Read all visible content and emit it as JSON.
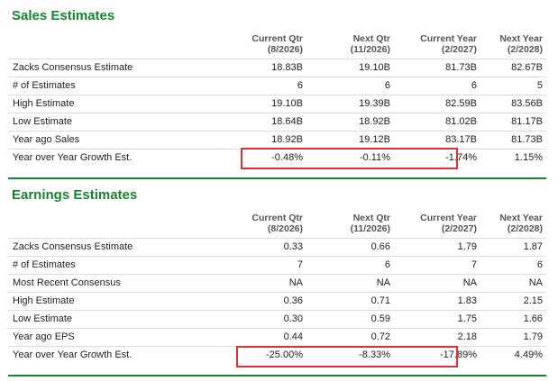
{
  "sales": {
    "title": "Sales Estimates",
    "headers": [
      {
        "l1": "Current Qtr",
        "l2": "(8/2026)"
      },
      {
        "l1": "Next Qtr",
        "l2": "(11/2026)"
      },
      {
        "l1": "Current Year",
        "l2": "(2/2027)"
      },
      {
        "l1": "Next Year",
        "l2": "(2/2028)"
      }
    ],
    "rows": [
      {
        "label": "Zacks Consensus Estimate",
        "values": [
          "18.83B",
          "19.10B",
          "81.73B",
          "82.67B"
        ]
      },
      {
        "label": "# of Estimates",
        "values": [
          "6",
          "6",
          "6",
          "5"
        ]
      },
      {
        "label": "High Estimate",
        "values": [
          "19.10B",
          "19.39B",
          "82.59B",
          "83.56B"
        ]
      },
      {
        "label": "Low Estimate",
        "values": [
          "18.64B",
          "18.92B",
          "81.02B",
          "81.17B"
        ]
      },
      {
        "label": "Year ago Sales",
        "values": [
          "18.92B",
          "19.12B",
          "83.17B",
          "81.73B"
        ]
      },
      {
        "label": "Year over Year Growth Est.",
        "values": [
          "-0.48%",
          "-0.11%",
          "-1.74%",
          "1.15%"
        ]
      }
    ]
  },
  "earnings": {
    "title": "Earnings Estimates",
    "headers": [
      {
        "l1": "Current Qtr",
        "l2": "(8/2026)"
      },
      {
        "l1": "Next Qtr",
        "l2": "(11/2026)"
      },
      {
        "l1": "Current Year",
        "l2": "(2/2027)"
      },
      {
        "l1": "Next Year",
        "l2": "(2/2028)"
      }
    ],
    "rows": [
      {
        "label": "Zacks Consensus Estimate",
        "values": [
          "0.33",
          "0.66",
          "1.79",
          "1.87"
        ]
      },
      {
        "label": "# of Estimates",
        "values": [
          "7",
          "6",
          "7",
          "6"
        ]
      },
      {
        "label": "Most Recent Consensus",
        "values": [
          "NA",
          "NA",
          "NA",
          "NA"
        ]
      },
      {
        "label": "High Estimate",
        "values": [
          "0.36",
          "0.71",
          "1.83",
          "2.15"
        ]
      },
      {
        "label": "Low Estimate",
        "values": [
          "0.30",
          "0.59",
          "1.75",
          "1.66"
        ]
      },
      {
        "label": "Year ago EPS",
        "values": [
          "0.44",
          "0.72",
          "2.18",
          "1.79"
        ]
      },
      {
        "label": "Year over Year Growth Est.",
        "values": [
          "-25.00%",
          "-8.33%",
          "-17.89%",
          "4.49%"
        ]
      }
    ]
  },
  "colors": {
    "accent_green": "#14862c",
    "highlight_red": "#e0302c"
  }
}
